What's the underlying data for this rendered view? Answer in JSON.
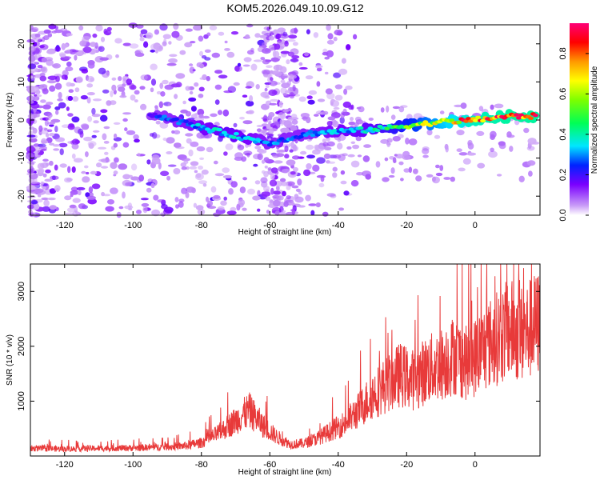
{
  "title": "KOM5.2026.049.10.09.G12",
  "chart_data": [
    {
      "type": "heatmap",
      "xlabel": "Height of straight line (km)",
      "ylabel": "Frequency (Hz)",
      "xlim": [
        -130,
        19
      ],
      "ylim": [
        -25,
        25
      ],
      "x_ticks": [
        -120,
        -100,
        -80,
        -60,
        -40,
        -20,
        0
      ],
      "y_ticks": [
        -20,
        -10,
        0,
        10,
        20
      ],
      "ridge": [
        {
          "x": -95,
          "y": 1.5,
          "v": 0.25
        },
        {
          "x": -88,
          "y": 0,
          "v": 0.3
        },
        {
          "x": -80,
          "y": -2,
          "v": 0.35
        },
        {
          "x": -73,
          "y": -3.5,
          "v": 0.4
        },
        {
          "x": -66,
          "y": -5,
          "v": 0.35
        },
        {
          "x": -60,
          "y": -6,
          "v": 0.3
        },
        {
          "x": -48,
          "y": -3.5,
          "v": 0.3
        },
        {
          "x": -40,
          "y": -3,
          "v": 0.35
        },
        {
          "x": -30,
          "y": -2.5,
          "v": 0.4
        },
        {
          "x": -20,
          "y": -1.5,
          "v": 0.55
        },
        {
          "x": -10,
          "y": -0.5,
          "v": 0.75
        },
        {
          "x": 0,
          "y": 0,
          "v": 0.9
        },
        {
          "x": 10,
          "y": 1,
          "v": 0.95
        },
        {
          "x": 18,
          "y": 1,
          "v": 0.95
        }
      ],
      "colorbar": {
        "label": "Normalized spectral amplitude",
        "range": [
          0,
          0.95
        ],
        "ticks": [
          "0.0",
          "0.2",
          "0.4",
          "0.6",
          "0.8"
        ],
        "tick_values": [
          0.0,
          0.2,
          0.4,
          0.6,
          0.8
        ]
      }
    },
    {
      "type": "line",
      "xlabel": "Height of straight line (km)",
      "ylabel": "SNR (10 * v/v)",
      "xlim": [
        -130,
        19
      ],
      "ylim": [
        0,
        3500
      ],
      "x_ticks": [
        -120,
        -100,
        -80,
        -60,
        -40,
        -20,
        0
      ],
      "y_ticks": [
        1000,
        2000,
        3000
      ],
      "series": [
        {
          "color": "#e83a3a",
          "x": [
            -130,
            -120,
            -110,
            -100,
            -90,
            -85,
            -80,
            -75,
            -70,
            -66,
            -62,
            -58,
            -54,
            -50,
            -46,
            -42,
            -38,
            -34,
            -30,
            -26,
            -22,
            -18,
            -14,
            -10,
            -6,
            -2,
            2,
            6,
            10,
            14,
            18
          ],
          "y": [
            150,
            140,
            150,
            160,
            180,
            200,
            260,
            450,
            700,
            900,
            600,
            380,
            230,
            250,
            350,
            500,
            650,
            900,
            1200,
            1400,
            1600,
            1500,
            1700,
            1800,
            2000,
            1800,
            2100,
            2300,
            2500,
            2400,
            2600
          ]
        }
      ]
    }
  ]
}
